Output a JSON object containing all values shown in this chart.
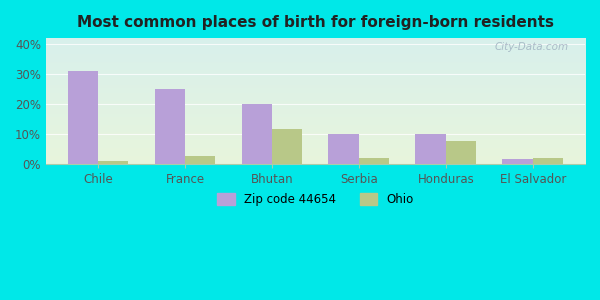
{
  "title": "Most common places of birth for foreign-born residents",
  "categories": [
    "Chile",
    "France",
    "Bhutan",
    "Serbia",
    "Honduras",
    "El Salvador"
  ],
  "zip_values": [
    31,
    25,
    20,
    10,
    10,
    1.5
  ],
  "ohio_values": [
    0.8,
    2.5,
    11.5,
    2.0,
    7.5,
    2.0
  ],
  "zip_color": "#b8a0d8",
  "ohio_color": "#b8c888",
  "bar_width": 0.35,
  "ylim": [
    0,
    42
  ],
  "yticks": [
    0,
    10,
    20,
    30,
    40
  ],
  "ytick_labels": [
    "0%",
    "10%",
    "20%",
    "30%",
    "40%"
  ],
  "legend_zip": "Zip code 44654",
  "legend_ohio": "Ohio",
  "fig_bg": "#00e8e8",
  "plot_bg_top": "#ddf4ee",
  "plot_bg_bottom": "#e8f5e0",
  "title_fontsize": 11,
  "tick_fontsize": 8.5,
  "watermark": "City-Data.com",
  "grid_color": "#ccddcc"
}
